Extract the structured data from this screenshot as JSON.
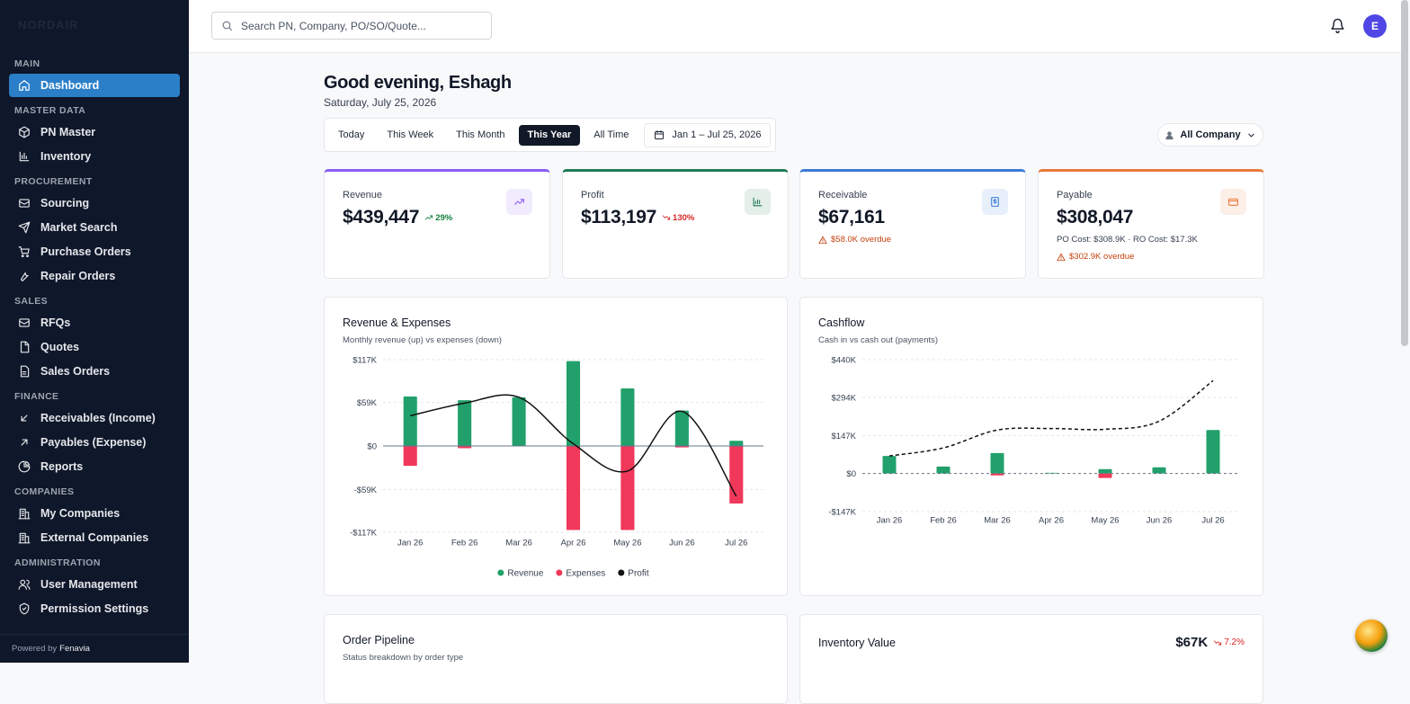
{
  "sidebar": {
    "brand": "NORDAIR",
    "active": [
      0,
      0
    ],
    "sections": [
      {
        "title": "MAIN",
        "items": [
          "Dashboard"
        ]
      },
      {
        "title": "MASTER DATA",
        "items": [
          "PN Master",
          "Inventory"
        ]
      },
      {
        "title": "PROCUREMENT",
        "items": [
          "Sourcing",
          "Market Search",
          "Purchase Orders",
          "Repair Orders"
        ]
      },
      {
        "title": "SALES",
        "items": [
          "RFQs",
          "Quotes",
          "Sales Orders"
        ]
      },
      {
        "title": "FINANCE",
        "items": [
          "Receivables (Income)",
          "Payables (Expense)",
          "Reports"
        ]
      },
      {
        "title": "COMPANIES",
        "items": [
          "My Companies",
          "External Companies"
        ]
      },
      {
        "title": "ADMINISTRATION",
        "items": [
          "User Management",
          "Permission Settings"
        ]
      }
    ],
    "footer": {
      "prefix": "Powered by",
      "brand": "Fenavia"
    }
  },
  "header": {
    "search_placeholder": "Search PN, Company, PO/SO/Quote...",
    "avatar": "E"
  },
  "greeting": {
    "title": "Good evening, Eshagh",
    "date": "Saturday, July 25, 2026"
  },
  "filters": {
    "periods": [
      "Today",
      "This Week",
      "This Month",
      "This Year",
      "All Time"
    ],
    "active": 3,
    "date_range": "Jan 1 – Jul 25, 2026",
    "company": "All Company"
  },
  "kpis": [
    {
      "label": "Revenue",
      "value": "$439,447",
      "change": "29%",
      "trend": "up",
      "accent": "#8b5cf6"
    },
    {
      "label": "Profit",
      "value": "$113,197",
      "change": "130%",
      "trend": "down",
      "accent": "#1f7a55"
    },
    {
      "label": "Receivable",
      "value": "$67,161",
      "warning": "$58.0K overdue",
      "accent": "#3b7bd6"
    },
    {
      "label": "Payable",
      "value": "$308,047",
      "detail": "PO Cost: $308.9K · RO Cost: $17.3K",
      "warning": "$302.9K overdue",
      "accent": "#ea7a3b"
    }
  ],
  "chart_data": [
    {
      "type": "bar",
      "title": "Revenue & Expenses",
      "subtitle": "Monthly revenue (up) vs expenses (down)",
      "categories": [
        "Jan 26",
        "Feb 26",
        "Mar 26",
        "Apr 26",
        "May 26",
        "Jun 26",
        "Jul 26"
      ],
      "series": [
        {
          "name": "Revenue",
          "color": "#22a06b",
          "values": [
            67000,
            62000,
            66000,
            115000,
            78000,
            48000,
            7000
          ]
        },
        {
          "name": "Expenses",
          "color": "#f0385a",
          "values": [
            -27000,
            -3000,
            0,
            -114000,
            -114000,
            -2000,
            -78000
          ]
        },
        {
          "name": "Profit",
          "color": "#111111",
          "type": "line",
          "values": [
            41000,
            58000,
            66000,
            3000,
            -34000,
            47000,
            -68000
          ]
        }
      ],
      "ylim": [
        -117000,
        117000
      ],
      "yticks": [
        {
          "value": 117000,
          "label": "$117K"
        },
        {
          "value": 59000,
          "label": "$59K"
        },
        {
          "value": 0,
          "label": "$0"
        },
        {
          "value": -59000,
          "label": "-$59K"
        },
        {
          "value": -117000,
          "label": "-$117K"
        }
      ],
      "grid": true,
      "zero_line": "solid",
      "legend": "bottom"
    },
    {
      "type": "bar",
      "title": "Cashflow",
      "subtitle": "Cash in vs cash out (payments)",
      "categories": [
        "Jan 26",
        "Feb 26",
        "Mar 26",
        "Apr 26",
        "May 26",
        "Jun 26",
        "Jul 26"
      ],
      "series": [
        {
          "color": "#22a06b",
          "values": [
            68000,
            27000,
            79000,
            3000,
            17000,
            24000,
            168000
          ]
        },
        {
          "color": "#f0385a",
          "values": [
            0,
            0,
            -7000,
            0,
            -17000,
            0,
            0
          ]
        },
        {
          "color": "#111111",
          "type": "line",
          "dashed": true,
          "values": [
            68000,
            99000,
            168000,
            174000,
            171000,
            202000,
            359000
          ]
        }
      ],
      "ylim": [
        -147000,
        440000
      ],
      "yticks": [
        {
          "value": 440000,
          "label": "$440K"
        },
        {
          "value": 294000,
          "label": "$294K"
        },
        {
          "value": 147000,
          "label": "$147K"
        },
        {
          "value": 0,
          "label": "$0"
        },
        {
          "value": -147000,
          "label": "-$147K"
        }
      ],
      "grid": true,
      "zero_line": "dashed"
    }
  ],
  "panels": [
    {
      "title": "Order Pipeline",
      "subtitle": "Status breakdown by order type"
    },
    {
      "title": "Inventory Value",
      "value": "$67K",
      "change": "7.2%",
      "trend": "down"
    }
  ]
}
